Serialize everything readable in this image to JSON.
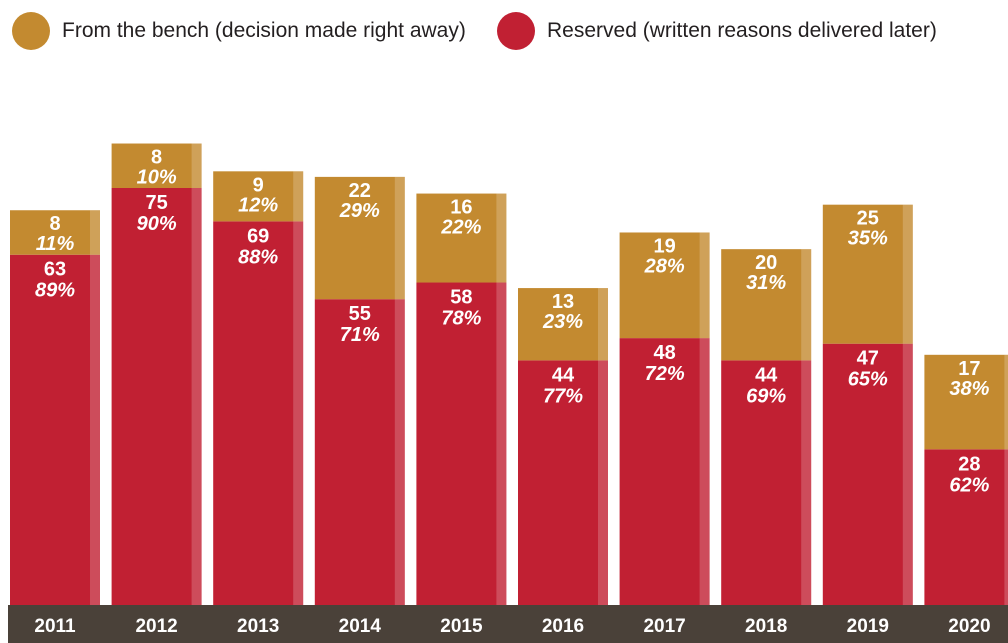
{
  "legend": {
    "bench_label": "From the bench (decision made right away)",
    "reserved_label": "Reserved (written reasons delivered later)"
  },
  "colors": {
    "bench": "#c38a30",
    "reserved": "#c12033",
    "axis_band": "#4a4139",
    "text_on_bar": "#ffffff"
  },
  "chart_data": {
    "type": "bar",
    "stacked": true,
    "categories": [
      "2011",
      "2012",
      "2013",
      "2014",
      "2015",
      "2016",
      "2017",
      "2018",
      "2019",
      "2020"
    ],
    "series": [
      {
        "name": "Reserved (written reasons delivered later)",
        "values": [
          63,
          75,
          69,
          55,
          58,
          44,
          48,
          44,
          47,
          28
        ],
        "percent_labels": [
          "89%",
          "90%",
          "88%",
          "71%",
          "78%",
          "77%",
          "72%",
          "69%",
          "65%",
          "62%"
        ]
      },
      {
        "name": "From the bench (decision made right away)",
        "values": [
          8,
          8,
          9,
          22,
          16,
          13,
          19,
          20,
          25,
          17
        ],
        "percent_labels": [
          "11%",
          "10%",
          "12%",
          "29%",
          "22%",
          "23%",
          "28%",
          "31%",
          "35%",
          "38%"
        ]
      }
    ],
    "grid": false,
    "legend_position": "top-left"
  }
}
